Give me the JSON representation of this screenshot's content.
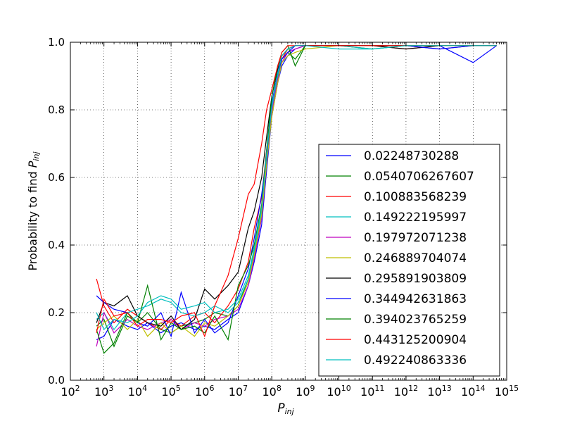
{
  "chart_data": {
    "type": "line",
    "title": "",
    "xlabel": "P",
    "xlabel_sub": "inj",
    "ylabel": "Probability to find ",
    "ylabel_math": "P",
    "ylabel_sub": "inj",
    "xscale": "log",
    "xlim": [
      100,
      1000000000000000
    ],
    "ylim": [
      0.0,
      1.0
    ],
    "grid": true,
    "legend_placement": "lower-right",
    "x_ticks": [
      {
        "value": 100,
        "base": "10",
        "exp": "2"
      },
      {
        "value": 1000,
        "base": "10",
        "exp": "3"
      },
      {
        "value": 10000,
        "base": "10",
        "exp": "4"
      },
      {
        "value": 100000,
        "base": "10",
        "exp": "5"
      },
      {
        "value": 1000000,
        "base": "10",
        "exp": "6"
      },
      {
        "value": 10000000,
        "base": "10",
        "exp": "7"
      },
      {
        "value": 100000000,
        "base": "10",
        "exp": "8"
      },
      {
        "value": 1000000000,
        "base": "10",
        "exp": "9"
      },
      {
        "value": 10000000000,
        "base": "10",
        "exp": "10"
      },
      {
        "value": 100000000000,
        "base": "10",
        "exp": "11"
      },
      {
        "value": 1000000000000,
        "base": "10",
        "exp": "12"
      },
      {
        "value": 10000000000000,
        "base": "10",
        "exp": "13"
      },
      {
        "value": 100000000000000,
        "base": "10",
        "exp": "14"
      },
      {
        "value": 1000000000000000,
        "base": "10",
        "exp": "15"
      }
    ],
    "y_ticks": [
      {
        "value": 0.0,
        "label": "0.0"
      },
      {
        "value": 0.2,
        "label": "0.2"
      },
      {
        "value": 0.4,
        "label": "0.4"
      },
      {
        "value": 0.6,
        "label": "0.6"
      },
      {
        "value": 0.8,
        "label": "0.8"
      },
      {
        "value": 1.0,
        "label": "1.0"
      }
    ],
    "x": [
      600,
      1000,
      2000,
      5000,
      10000,
      20000,
      50000,
      100000,
      200000,
      500000,
      1000000,
      2000000,
      5000000,
      10000000,
      20000000,
      30000000,
      50000000,
      70000000,
      100000000,
      150000000,
      200000000,
      300000000,
      500000000,
      1000000000,
      10000000000,
      100000000000,
      1000000000000,
      10000000000000,
      100000000000000,
      500000000000000
    ],
    "series": [
      {
        "name": "0.02248730288",
        "color": "#0000ff",
        "values": [
          0.12,
          0.13,
          0.18,
          0.16,
          0.15,
          0.17,
          0.14,
          0.16,
          0.17,
          0.15,
          0.16,
          0.15,
          0.18,
          0.2,
          0.28,
          0.35,
          0.46,
          0.62,
          0.78,
          0.88,
          0.93,
          0.96,
          0.98,
          0.99,
          0.99,
          0.99,
          0.99,
          0.99,
          0.94,
          0.99
        ]
      },
      {
        "name": "0.0540706267607",
        "color": "#008000",
        "values": [
          0.16,
          0.18,
          0.1,
          0.19,
          0.17,
          0.2,
          0.15,
          0.14,
          0.16,
          0.17,
          0.18,
          0.2,
          0.19,
          0.22,
          0.3,
          0.38,
          0.5,
          0.66,
          0.8,
          0.9,
          0.95,
          0.97,
          0.95,
          0.99,
          0.99,
          0.98,
          0.99,
          0.99,
          0.99,
          0.99
        ]
      },
      {
        "name": "0.100883568239",
        "color": "#ff0000",
        "values": [
          0.3,
          0.22,
          0.17,
          0.21,
          0.19,
          0.17,
          0.15,
          0.18,
          0.16,
          0.19,
          0.2,
          0.17,
          0.22,
          0.27,
          0.35,
          0.45,
          0.54,
          0.68,
          0.82,
          0.9,
          0.95,
          0.98,
          0.99,
          0.99,
          0.99,
          0.99,
          0.98,
          0.99,
          0.99,
          0.99
        ]
      },
      {
        "name": "0.149222195997",
        "color": "#00bfbf",
        "values": [
          0.18,
          0.2,
          0.15,
          0.2,
          0.21,
          0.22,
          0.24,
          0.23,
          0.2,
          0.19,
          0.2,
          0.22,
          0.2,
          0.23,
          0.3,
          0.38,
          0.5,
          0.66,
          0.8,
          0.9,
          0.95,
          0.97,
          0.99,
          0.99,
          0.99,
          0.98,
          0.99,
          0.98,
          0.99,
          0.99
        ]
      },
      {
        "name": "0.197972071238",
        "color": "#bf00bf",
        "values": [
          0.1,
          0.2,
          0.14,
          0.18,
          0.16,
          0.15,
          0.17,
          0.18,
          0.15,
          0.17,
          0.16,
          0.18,
          0.19,
          0.21,
          0.28,
          0.36,
          0.48,
          0.64,
          0.79,
          0.89,
          0.94,
          0.97,
          0.98,
          0.99,
          0.99,
          0.99,
          0.99,
          0.98,
          0.99,
          0.99
        ]
      },
      {
        "name": "0.246889704074",
        "color": "#bfbf00",
        "values": [
          0.15,
          0.17,
          0.19,
          0.15,
          0.18,
          0.13,
          0.17,
          0.14,
          0.16,
          0.13,
          0.17,
          0.16,
          0.19,
          0.22,
          0.29,
          0.37,
          0.49,
          0.64,
          0.78,
          0.88,
          0.94,
          0.96,
          0.97,
          0.98,
          0.99,
          0.99,
          0.99,
          0.99,
          0.99,
          0.99
        ]
      },
      {
        "name": "0.295891903809",
        "color": "#000000",
        "values": [
          0.17,
          0.23,
          0.22,
          0.25,
          0.19,
          0.17,
          0.16,
          0.19,
          0.15,
          0.18,
          0.27,
          0.24,
          0.28,
          0.32,
          0.45,
          0.5,
          0.6,
          0.72,
          0.84,
          0.92,
          0.96,
          0.98,
          0.99,
          0.99,
          0.99,
          0.99,
          0.98,
          0.99,
          0.99,
          0.99
        ]
      },
      {
        "name": "0.344942631863",
        "color": "#0000ff",
        "values": [
          0.25,
          0.23,
          0.21,
          0.2,
          0.17,
          0.16,
          0.2,
          0.13,
          0.26,
          0.14,
          0.18,
          0.14,
          0.17,
          0.25,
          0.33,
          0.42,
          0.55,
          0.66,
          0.82,
          0.91,
          0.95,
          0.97,
          0.99,
          0.99,
          0.99,
          0.99,
          0.99,
          0.98,
          0.99,
          0.99
        ]
      },
      {
        "name": "0.394023765259",
        "color": "#008000",
        "values": [
          0.15,
          0.08,
          0.11,
          0.2,
          0.17,
          0.28,
          0.12,
          0.17,
          0.15,
          0.16,
          0.14,
          0.19,
          0.12,
          0.28,
          0.34,
          0.4,
          0.52,
          0.68,
          0.84,
          0.93,
          0.97,
          0.99,
          0.93,
          0.99,
          0.99,
          0.99,
          0.99,
          0.99,
          0.99,
          0.99
        ]
      },
      {
        "name": "0.443125200904",
        "color": "#ff0000",
        "values": [
          0.14,
          0.24,
          0.19,
          0.2,
          0.16,
          0.18,
          0.18,
          0.17,
          0.19,
          0.2,
          0.13,
          0.22,
          0.31,
          0.42,
          0.55,
          0.58,
          0.7,
          0.8,
          0.86,
          0.93,
          0.97,
          0.99,
          0.99,
          0.99,
          0.99,
          0.99,
          0.99,
          0.99,
          0.99,
          0.99
        ]
      },
      {
        "name": "0.492240863336",
        "color": "#00bfbf",
        "values": [
          0.2,
          0.15,
          0.18,
          0.17,
          0.19,
          0.23,
          0.25,
          0.24,
          0.21,
          0.22,
          0.23,
          0.2,
          0.21,
          0.24,
          0.31,
          0.39,
          0.51,
          0.67,
          0.81,
          0.91,
          0.96,
          0.98,
          0.99,
          0.99,
          0.98,
          0.98,
          0.99,
          0.99,
          0.99,
          0.99
        ]
      }
    ]
  }
}
